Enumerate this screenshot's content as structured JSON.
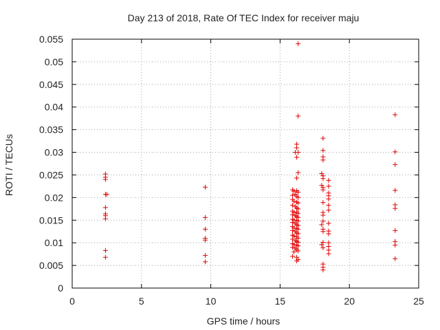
{
  "chart_data": {
    "type": "scatter",
    "title": "Day 213 of 2018, Rate Of TEC Index for receiver maju",
    "xlabel": "GPS time / hours",
    "ylabel": "ROTI / TECUs",
    "xlim": [
      0,
      25
    ],
    "ylim": [
      0,
      0.055
    ],
    "x_ticks": [
      0,
      5,
      10,
      15,
      20,
      25
    ],
    "x_tick_labels": [
      "0",
      "5",
      "10",
      "15",
      "20",
      "25"
    ],
    "y_ticks": [
      0,
      0.005,
      0.01,
      0.015,
      0.02,
      0.025,
      0.03,
      0.035,
      0.04,
      0.045,
      0.05,
      0.055
    ],
    "y_tick_labels": [
      "0",
      "0.005",
      "0.01",
      "0.015",
      "0.02",
      "0.025",
      "0.03",
      "0.035",
      "0.04",
      "0.045",
      "0.05",
      "0.055"
    ],
    "grid": true,
    "marker": "+",
    "color": "#e00000",
    "series": [
      {
        "name": "ROTI",
        "points": [
          [
            2.4,
            0.0252
          ],
          [
            2.4,
            0.0245
          ],
          [
            2.4,
            0.024
          ],
          [
            2.4,
            0.0207
          ],
          [
            2.5,
            0.0207
          ],
          [
            2.4,
            0.0178
          ],
          [
            2.4,
            0.0164
          ],
          [
            2.4,
            0.016
          ],
          [
            2.4,
            0.0153
          ],
          [
            2.4,
            0.0083
          ],
          [
            2.4,
            0.0068
          ],
          [
            9.6,
            0.0223
          ],
          [
            9.6,
            0.0156
          ],
          [
            9.6,
            0.013
          ],
          [
            9.6,
            0.011
          ],
          [
            9.6,
            0.0106
          ],
          [
            9.6,
            0.0072
          ],
          [
            9.6,
            0.0058
          ],
          [
            16.3,
            0.054
          ],
          [
            16.3,
            0.038
          ],
          [
            16.2,
            0.0318
          ],
          [
            16.2,
            0.031
          ],
          [
            16.1,
            0.03
          ],
          [
            16.3,
            0.03
          ],
          [
            16.2,
            0.0289
          ],
          [
            16.3,
            0.0255
          ],
          [
            16.2,
            0.0243
          ],
          [
            15.9,
            0.0217
          ],
          [
            16.0,
            0.0214
          ],
          [
            16.2,
            0.0215
          ],
          [
            16.3,
            0.0212
          ],
          [
            15.9,
            0.0205
          ],
          [
            16.1,
            0.0207
          ],
          [
            16.2,
            0.0203
          ],
          [
            16.3,
            0.02
          ],
          [
            15.9,
            0.0196
          ],
          [
            16.0,
            0.0192
          ],
          [
            16.2,
            0.019
          ],
          [
            16.3,
            0.0188
          ],
          [
            15.9,
            0.0183
          ],
          [
            16.1,
            0.018
          ],
          [
            16.2,
            0.0177
          ],
          [
            16.3,
            0.0175
          ],
          [
            15.9,
            0.017
          ],
          [
            16.0,
            0.0167
          ],
          [
            16.2,
            0.0168
          ],
          [
            16.3,
            0.0165
          ],
          [
            15.9,
            0.0162
          ],
          [
            16.1,
            0.016
          ],
          [
            16.2,
            0.0158
          ],
          [
            16.3,
            0.0156
          ],
          [
            15.9,
            0.0152
          ],
          [
            16.0,
            0.015
          ],
          [
            16.2,
            0.015
          ],
          [
            16.3,
            0.0148
          ],
          [
            15.9,
            0.0145
          ],
          [
            16.1,
            0.0143
          ],
          [
            16.2,
            0.014
          ],
          [
            16.3,
            0.0138
          ],
          [
            15.9,
            0.0136
          ],
          [
            16.0,
            0.0133
          ],
          [
            16.2,
            0.0132
          ],
          [
            16.3,
            0.013
          ],
          [
            15.9,
            0.0127
          ],
          [
            16.1,
            0.0125
          ],
          [
            16.2,
            0.0122
          ],
          [
            16.3,
            0.012
          ],
          [
            15.9,
            0.0117
          ],
          [
            16.0,
            0.0115
          ],
          [
            16.2,
            0.0113
          ],
          [
            16.3,
            0.011
          ],
          [
            15.9,
            0.0108
          ],
          [
            16.1,
            0.0105
          ],
          [
            16.2,
            0.0103
          ],
          [
            16.3,
            0.0101
          ],
          [
            15.9,
            0.0098
          ],
          [
            16.0,
            0.0096
          ],
          [
            16.2,
            0.0095
          ],
          [
            16.3,
            0.0093
          ],
          [
            15.9,
            0.009
          ],
          [
            16.1,
            0.0088
          ],
          [
            16.2,
            0.0085
          ],
          [
            16.3,
            0.0082
          ],
          [
            16.0,
            0.008
          ],
          [
            15.9,
            0.007
          ],
          [
            16.2,
            0.0068
          ],
          [
            16.3,
            0.0063
          ],
          [
            16.2,
            0.006
          ],
          [
            18.1,
            0.0331
          ],
          [
            18.1,
            0.0304
          ],
          [
            18.1,
            0.029
          ],
          [
            18.1,
            0.0283
          ],
          [
            18.0,
            0.0253
          ],
          [
            18.1,
            0.0248
          ],
          [
            18.1,
            0.0242
          ],
          [
            18.0,
            0.0227
          ],
          [
            18.1,
            0.0222
          ],
          [
            18.1,
            0.0217
          ],
          [
            18.1,
            0.0189
          ],
          [
            18.1,
            0.0167
          ],
          [
            18.1,
            0.0161
          ],
          [
            18.1,
            0.0148
          ],
          [
            18.0,
            0.014
          ],
          [
            18.1,
            0.013
          ],
          [
            18.1,
            0.0125
          ],
          [
            18.1,
            0.0101
          ],
          [
            18.0,
            0.0096
          ],
          [
            18.1,
            0.0089
          ],
          [
            18.1,
            0.0053
          ],
          [
            18.1,
            0.0046
          ],
          [
            18.1,
            0.004
          ],
          [
            18.5,
            0.0238
          ],
          [
            18.5,
            0.0225
          ],
          [
            18.5,
            0.021
          ],
          [
            18.5,
            0.0204
          ],
          [
            18.5,
            0.0197
          ],
          [
            18.5,
            0.0183
          ],
          [
            18.5,
            0.0172
          ],
          [
            18.5,
            0.0143
          ],
          [
            18.5,
            0.0126
          ],
          [
            18.5,
            0.012
          ],
          [
            18.5,
            0.01
          ],
          [
            18.5,
            0.0092
          ],
          [
            18.5,
            0.0084
          ],
          [
            18.5,
            0.0076
          ],
          [
            23.3,
            0.0383
          ],
          [
            23.3,
            0.0301
          ],
          [
            23.3,
            0.0273
          ],
          [
            23.3,
            0.0216
          ],
          [
            23.3,
            0.0184
          ],
          [
            23.3,
            0.0176
          ],
          [
            23.3,
            0.0127
          ],
          [
            23.3,
            0.0103
          ],
          [
            23.3,
            0.0095
          ],
          [
            23.3,
            0.0065
          ]
        ]
      }
    ]
  }
}
